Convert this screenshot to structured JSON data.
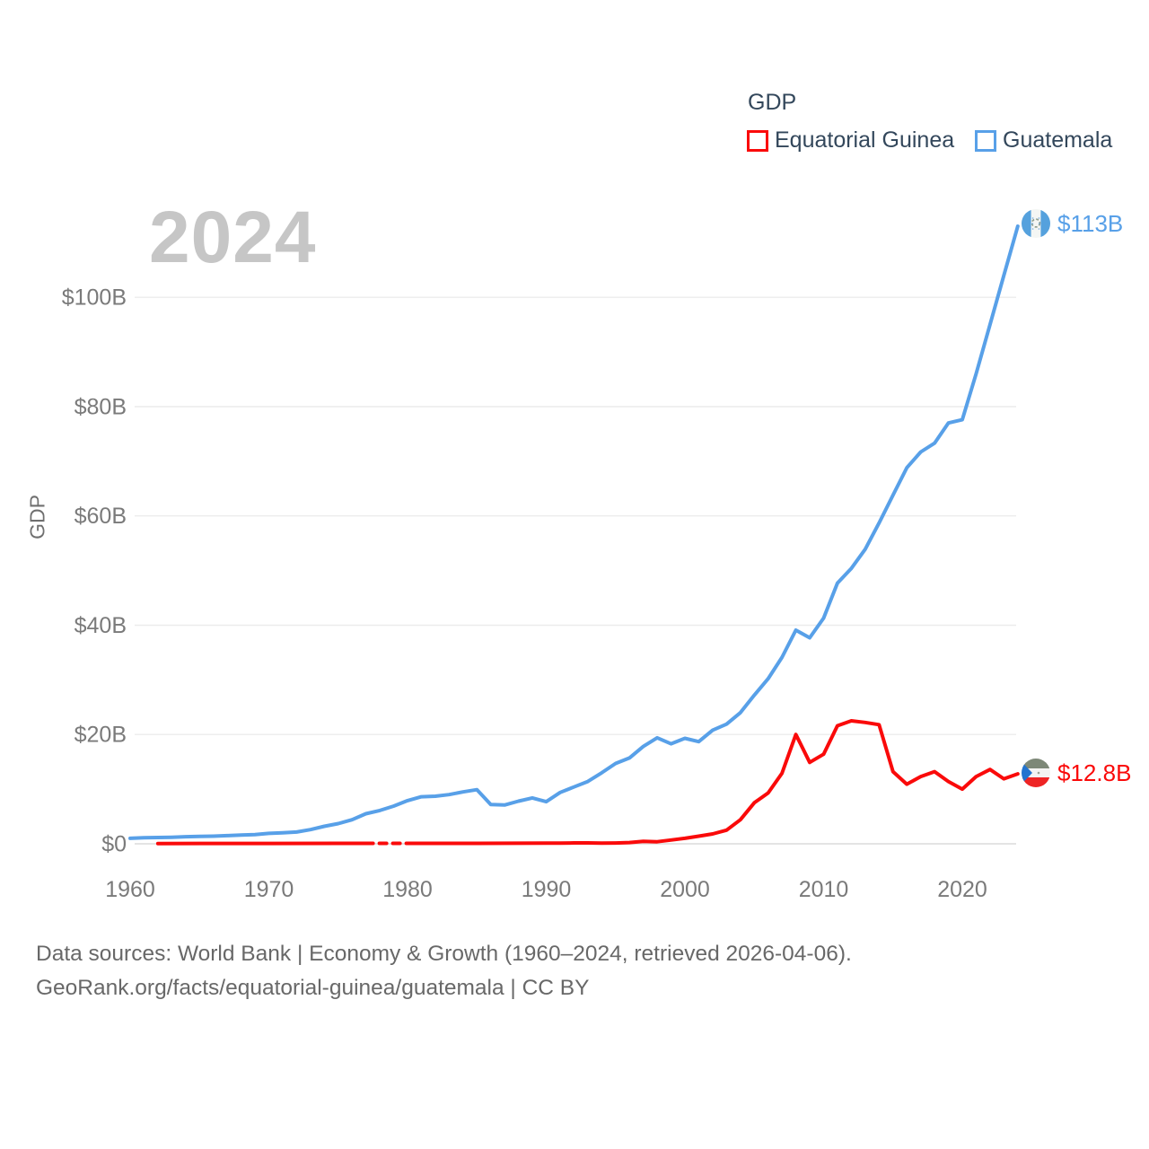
{
  "watermark": "2024",
  "legend": {
    "title": "GDP",
    "items": [
      {
        "label": "Equatorial Guinea",
        "color": "#fa0a0a"
      },
      {
        "label": "Guatemala",
        "color": "#58a0e8"
      }
    ]
  },
  "axis": {
    "y_title": "GDP"
  },
  "end_labels": {
    "guatemala": {
      "value_label": "$113B",
      "icon": "guatemala-flag-icon"
    },
    "equatorial_guinea": {
      "value_label": "$12.8B",
      "icon": "equatorial-guinea-flag-icon"
    }
  },
  "footer": {
    "line1": "Data sources: World Bank | Economy & Growth (1960–2024, retrieved 2026-04-06).",
    "line2": "GeoRank.org/facts/equatorial-guinea/guatemala | CC BY"
  },
  "chart_data": {
    "type": "line",
    "title": "GDP",
    "unit": "USD billions (current US$)",
    "xlim": [
      1959,
      2026
    ],
    "ylim": [
      0,
      116
    ],
    "grid": true,
    "legend_position": "top-right",
    "x_ticks": [
      1960,
      1970,
      1980,
      1990,
      2000,
      2010,
      2020
    ],
    "y_ticks": [
      {
        "label": "$0",
        "value": 0
      },
      {
        "label": "$20B",
        "value": 20
      },
      {
        "label": "$40B",
        "value": 40
      },
      {
        "label": "$60B",
        "value": 60
      },
      {
        "label": "$80B",
        "value": 80
      },
      {
        "label": "$100B",
        "value": 100
      }
    ],
    "series": [
      {
        "name": "Guatemala",
        "color": "#58a0e8",
        "end_value_label": "$113B",
        "segments": [
          {
            "style": "solid",
            "points": [
              [
                1960,
                1.0
              ],
              [
                1961,
                1.1
              ],
              [
                1962,
                1.15
              ],
              [
                1963,
                1.2
              ],
              [
                1964,
                1.3
              ],
              [
                1965,
                1.35
              ],
              [
                1966,
                1.4
              ],
              [
                1967,
                1.5
              ],
              [
                1968,
                1.6
              ],
              [
                1969,
                1.7
              ],
              [
                1970,
                1.9
              ],
              [
                1971,
                2.0
              ],
              [
                1972,
                2.15
              ],
              [
                1973,
                2.6
              ],
              [
                1974,
                3.2
              ],
              [
                1975,
                3.7
              ],
              [
                1976,
                4.4
              ],
              [
                1977,
                5.5
              ],
              [
                1978,
                6.1
              ],
              [
                1979,
                6.9
              ],
              [
                1980,
                7.9
              ],
              [
                1981,
                8.6
              ],
              [
                1982,
                8.7
              ],
              [
                1983,
                9.0
              ],
              [
                1984,
                9.5
              ],
              [
                1985,
                9.9
              ],
              [
                1986,
                7.2
              ],
              [
                1987,
                7.1
              ],
              [
                1988,
                7.8
              ],
              [
                1989,
                8.4
              ],
              [
                1990,
                7.7
              ],
              [
                1991,
                9.4
              ],
              [
                1992,
                10.4
              ],
              [
                1993,
                11.4
              ],
              [
                1994,
                13.0
              ],
              [
                1995,
                14.7
              ],
              [
                1996,
                15.7
              ],
              [
                1997,
                17.8
              ],
              [
                1998,
                19.4
              ],
              [
                1999,
                18.3
              ],
              [
                2000,
                19.3
              ],
              [
                2001,
                18.7
              ],
              [
                2002,
                20.8
              ],
              [
                2003,
                21.9
              ],
              [
                2004,
                24.0
              ],
              [
                2005,
                27.2
              ],
              [
                2006,
                30.2
              ],
              [
                2007,
                34.1
              ],
              [
                2008,
                39.1
              ],
              [
                2009,
                37.7
              ],
              [
                2010,
                41.3
              ],
              [
                2011,
                47.7
              ],
              [
                2012,
                50.4
              ],
              [
                2013,
                53.9
              ],
              [
                2014,
                58.7
              ],
              [
                2015,
                63.8
              ],
              [
                2016,
                68.8
              ],
              [
                2017,
                71.7
              ],
              [
                2018,
                73.3
              ],
              [
                2019,
                77.0
              ],
              [
                2020,
                77.6
              ],
              [
                2021,
                86.0
              ],
              [
                2022,
                95.0
              ],
              [
                2023,
                104.0
              ],
              [
                2024,
                113.0
              ]
            ]
          }
        ]
      },
      {
        "name": "Equatorial Guinea",
        "color": "#fa0a0a",
        "end_value_label": "$12.8B",
        "segments": [
          {
            "style": "solid",
            "points": [
              [
                1962,
                0.05
              ],
              [
                1965,
                0.06
              ],
              [
                1970,
                0.07
              ],
              [
                1975,
                0.08
              ],
              [
                1977,
                0.08
              ]
            ]
          },
          {
            "style": "dashed",
            "points": [
              [
                1977,
                0.08
              ],
              [
                1980,
                0.08
              ]
            ]
          },
          {
            "style": "solid",
            "points": [
              [
                1980,
                0.08
              ],
              [
                1985,
                0.09
              ],
              [
                1990,
                0.11
              ],
              [
                1991,
                0.12
              ],
              [
                1992,
                0.16
              ],
              [
                1993,
                0.16
              ],
              [
                1994,
                0.12
              ],
              [
                1995,
                0.14
              ],
              [
                1996,
                0.23
              ],
              [
                1997,
                0.44
              ],
              [
                1998,
                0.37
              ],
              [
                1999,
                0.69
              ],
              [
                2000,
                1.0
              ],
              [
                2001,
                1.4
              ],
              [
                2002,
                1.8
              ],
              [
                2003,
                2.5
              ],
              [
                2004,
                4.4
              ],
              [
                2005,
                7.5
              ],
              [
                2006,
                9.3
              ],
              [
                2007,
                12.9
              ],
              [
                2008,
                20.0
              ],
              [
                2009,
                14.9
              ],
              [
                2010,
                16.4
              ],
              [
                2011,
                21.6
              ],
              [
                2012,
                22.5
              ],
              [
                2013,
                22.2
              ],
              [
                2014,
                21.8
              ],
              [
                2015,
                13.2
              ],
              [
                2016,
                10.9
              ],
              [
                2017,
                12.3
              ],
              [
                2018,
                13.2
              ],
              [
                2019,
                11.4
              ],
              [
                2020,
                10.0
              ],
              [
                2021,
                12.3
              ],
              [
                2022,
                13.6
              ],
              [
                2023,
                11.9
              ],
              [
                2024,
                12.8
              ]
            ]
          }
        ]
      }
    ]
  }
}
